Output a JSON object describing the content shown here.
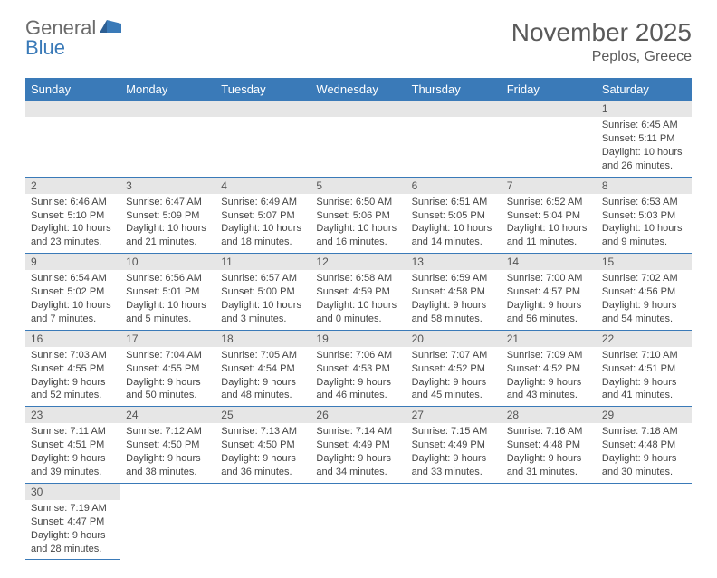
{
  "logo": {
    "text1": "General",
    "text2": "Blue"
  },
  "colors": {
    "header_bg": "#3a7ab8",
    "header_fg": "#ffffff",
    "daynum_bg": "#e6e6e6",
    "row_divider": "#3a7ab8",
    "text": "#444444",
    "title": "#5a5a5a"
  },
  "title": "November 2025",
  "location": "Peplos, Greece",
  "day_headers": [
    "Sunday",
    "Monday",
    "Tuesday",
    "Wednesday",
    "Thursday",
    "Friday",
    "Saturday"
  ],
  "weeks": [
    [
      null,
      null,
      null,
      null,
      null,
      null,
      {
        "n": "1",
        "sunrise": "Sunrise: 6:45 AM",
        "sunset": "Sunset: 5:11 PM",
        "daylight": "Daylight: 10 hours and 26 minutes."
      }
    ],
    [
      {
        "n": "2",
        "sunrise": "Sunrise: 6:46 AM",
        "sunset": "Sunset: 5:10 PM",
        "daylight": "Daylight: 10 hours and 23 minutes."
      },
      {
        "n": "3",
        "sunrise": "Sunrise: 6:47 AM",
        "sunset": "Sunset: 5:09 PM",
        "daylight": "Daylight: 10 hours and 21 minutes."
      },
      {
        "n": "4",
        "sunrise": "Sunrise: 6:49 AM",
        "sunset": "Sunset: 5:07 PM",
        "daylight": "Daylight: 10 hours and 18 minutes."
      },
      {
        "n": "5",
        "sunrise": "Sunrise: 6:50 AM",
        "sunset": "Sunset: 5:06 PM",
        "daylight": "Daylight: 10 hours and 16 minutes."
      },
      {
        "n": "6",
        "sunrise": "Sunrise: 6:51 AM",
        "sunset": "Sunset: 5:05 PM",
        "daylight": "Daylight: 10 hours and 14 minutes."
      },
      {
        "n": "7",
        "sunrise": "Sunrise: 6:52 AM",
        "sunset": "Sunset: 5:04 PM",
        "daylight": "Daylight: 10 hours and 11 minutes."
      },
      {
        "n": "8",
        "sunrise": "Sunrise: 6:53 AM",
        "sunset": "Sunset: 5:03 PM",
        "daylight": "Daylight: 10 hours and 9 minutes."
      }
    ],
    [
      {
        "n": "9",
        "sunrise": "Sunrise: 6:54 AM",
        "sunset": "Sunset: 5:02 PM",
        "daylight": "Daylight: 10 hours and 7 minutes."
      },
      {
        "n": "10",
        "sunrise": "Sunrise: 6:56 AM",
        "sunset": "Sunset: 5:01 PM",
        "daylight": "Daylight: 10 hours and 5 minutes."
      },
      {
        "n": "11",
        "sunrise": "Sunrise: 6:57 AM",
        "sunset": "Sunset: 5:00 PM",
        "daylight": "Daylight: 10 hours and 3 minutes."
      },
      {
        "n": "12",
        "sunrise": "Sunrise: 6:58 AM",
        "sunset": "Sunset: 4:59 PM",
        "daylight": "Daylight: 10 hours and 0 minutes."
      },
      {
        "n": "13",
        "sunrise": "Sunrise: 6:59 AM",
        "sunset": "Sunset: 4:58 PM",
        "daylight": "Daylight: 9 hours and 58 minutes."
      },
      {
        "n": "14",
        "sunrise": "Sunrise: 7:00 AM",
        "sunset": "Sunset: 4:57 PM",
        "daylight": "Daylight: 9 hours and 56 minutes."
      },
      {
        "n": "15",
        "sunrise": "Sunrise: 7:02 AM",
        "sunset": "Sunset: 4:56 PM",
        "daylight": "Daylight: 9 hours and 54 minutes."
      }
    ],
    [
      {
        "n": "16",
        "sunrise": "Sunrise: 7:03 AM",
        "sunset": "Sunset: 4:55 PM",
        "daylight": "Daylight: 9 hours and 52 minutes."
      },
      {
        "n": "17",
        "sunrise": "Sunrise: 7:04 AM",
        "sunset": "Sunset: 4:55 PM",
        "daylight": "Daylight: 9 hours and 50 minutes."
      },
      {
        "n": "18",
        "sunrise": "Sunrise: 7:05 AM",
        "sunset": "Sunset: 4:54 PM",
        "daylight": "Daylight: 9 hours and 48 minutes."
      },
      {
        "n": "19",
        "sunrise": "Sunrise: 7:06 AM",
        "sunset": "Sunset: 4:53 PM",
        "daylight": "Daylight: 9 hours and 46 minutes."
      },
      {
        "n": "20",
        "sunrise": "Sunrise: 7:07 AM",
        "sunset": "Sunset: 4:52 PM",
        "daylight": "Daylight: 9 hours and 45 minutes."
      },
      {
        "n": "21",
        "sunrise": "Sunrise: 7:09 AM",
        "sunset": "Sunset: 4:52 PM",
        "daylight": "Daylight: 9 hours and 43 minutes."
      },
      {
        "n": "22",
        "sunrise": "Sunrise: 7:10 AM",
        "sunset": "Sunset: 4:51 PM",
        "daylight": "Daylight: 9 hours and 41 minutes."
      }
    ],
    [
      {
        "n": "23",
        "sunrise": "Sunrise: 7:11 AM",
        "sunset": "Sunset: 4:51 PM",
        "daylight": "Daylight: 9 hours and 39 minutes."
      },
      {
        "n": "24",
        "sunrise": "Sunrise: 7:12 AM",
        "sunset": "Sunset: 4:50 PM",
        "daylight": "Daylight: 9 hours and 38 minutes."
      },
      {
        "n": "25",
        "sunrise": "Sunrise: 7:13 AM",
        "sunset": "Sunset: 4:50 PM",
        "daylight": "Daylight: 9 hours and 36 minutes."
      },
      {
        "n": "26",
        "sunrise": "Sunrise: 7:14 AM",
        "sunset": "Sunset: 4:49 PM",
        "daylight": "Daylight: 9 hours and 34 minutes."
      },
      {
        "n": "27",
        "sunrise": "Sunrise: 7:15 AM",
        "sunset": "Sunset: 4:49 PM",
        "daylight": "Daylight: 9 hours and 33 minutes."
      },
      {
        "n": "28",
        "sunrise": "Sunrise: 7:16 AM",
        "sunset": "Sunset: 4:48 PM",
        "daylight": "Daylight: 9 hours and 31 minutes."
      },
      {
        "n": "29",
        "sunrise": "Sunrise: 7:18 AM",
        "sunset": "Sunset: 4:48 PM",
        "daylight": "Daylight: 9 hours and 30 minutes."
      }
    ],
    [
      {
        "n": "30",
        "sunrise": "Sunrise: 7:19 AM",
        "sunset": "Sunset: 4:47 PM",
        "daylight": "Daylight: 9 hours and 28 minutes."
      },
      null,
      null,
      null,
      null,
      null,
      null
    ]
  ]
}
